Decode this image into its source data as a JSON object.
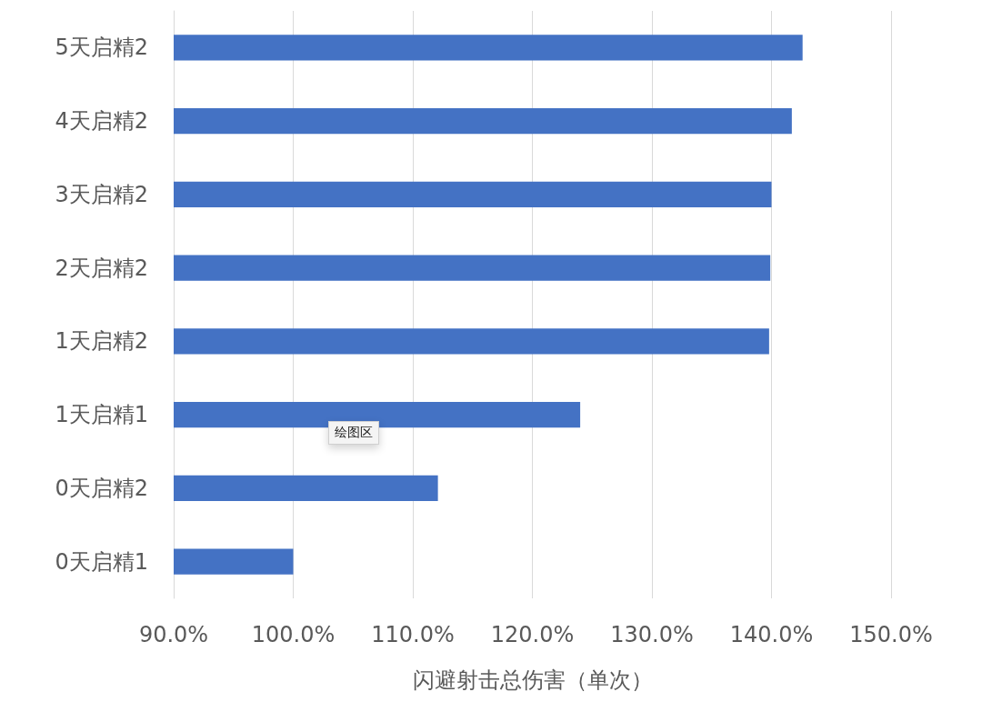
{
  "chart_data": {
    "type": "bar",
    "orientation": "horizontal",
    "categories": [
      "5天启精2",
      "4天启精2",
      "3天启精2",
      "2天启精2",
      "1天启精2",
      "1天启精1",
      "0天启精2",
      "0天启精1"
    ],
    "values": [
      142.6,
      141.7,
      140.0,
      139.9,
      139.8,
      124.0,
      112.1,
      100.0
    ],
    "color": "#4472c4",
    "xlabel": "闪避射击总伤害（单次）",
    "xlim": [
      90,
      150
    ],
    "xticks": [
      {
        "value": 90,
        "label": "90.0%"
      },
      {
        "value": 100,
        "label": "100.0%"
      },
      {
        "value": 110,
        "label": "110.0%"
      },
      {
        "value": 120,
        "label": "120.0%"
      },
      {
        "value": 130,
        "label": "130.0%"
      },
      {
        "value": 140,
        "label": "140.0%"
      },
      {
        "value": 150,
        "label": "150.0%"
      }
    ],
    "grid": "x",
    "annotations": [
      "绘图区"
    ]
  }
}
